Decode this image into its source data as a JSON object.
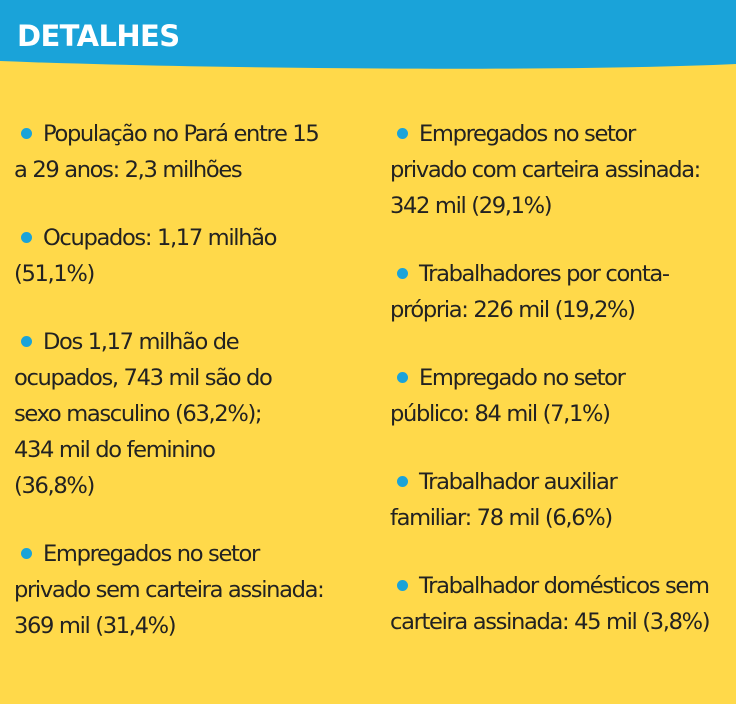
{
  "header": {
    "title": "DETALHES"
  },
  "colors": {
    "background": "#ffd94a",
    "header": "#1aa3d9",
    "bullet": "#1aa3d9",
    "text": "#222222"
  },
  "left_items": [
    {
      "lines": [
        "População no Pará entre 15",
        "a 29 anos: 2,3 milhões"
      ]
    },
    {
      "lines": [
        "Ocupados: 1,17 milhão",
        "(51,1%)"
      ]
    },
    {
      "lines": [
        "Dos 1,17 milhão de",
        "ocupados, 743 mil são do",
        "sexo masculino (63,2%);",
        "434 mil do feminino",
        "(36,8%)"
      ]
    },
    {
      "lines": [
        "Empregados no setor",
        "privado sem carteira assinada:",
        "369 mil (31,4%)"
      ]
    }
  ],
  "right_items": [
    {
      "lines": [
        "Empregados no setor",
        "privado com carteira assinada:",
        "342 mil (29,1%)"
      ]
    },
    {
      "lines": [
        "Trabalhadores por conta-",
        "própria: 226 mil (19,2%)"
      ]
    },
    {
      "lines": [
        "Empregado no setor",
        "público: 84 mil (7,1%)"
      ]
    },
    {
      "lines": [
        "Trabalhador auxiliar",
        "familiar: 78 mil (6,6%)"
      ]
    },
    {
      "lines": [
        "Trabalhador domésticos sem",
        "carteira assinada: 45 mil (3,8%)"
      ]
    }
  ]
}
